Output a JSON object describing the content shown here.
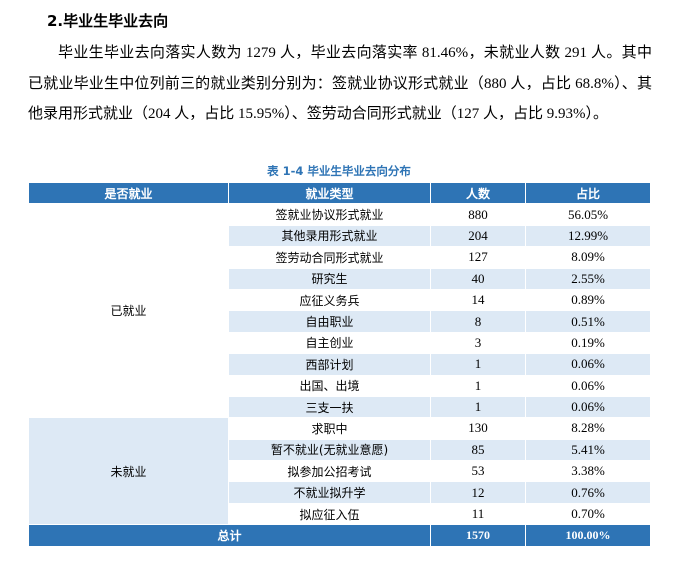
{
  "heading": "2.毕业生毕业去向",
  "paragraph": "毕业生毕业去向落实人数为 1279 人，毕业去向落实率 81.46%，未就业人数 291 人。其中已就业毕业生中位列前三的就业类别分别为：签就业协议形式就业（880 人，占比 68.8%）、其他录用形式就业（204 人，占比 15.95%）、签劳动合同形式就业（127 人，占比 9.93%）。",
  "table": {
    "caption": "表 1-4  毕业生毕业去向分布",
    "header": [
      "是否就业",
      "就业类型",
      "人数",
      "占比"
    ],
    "groups": [
      {
        "name": "已就业",
        "rows": [
          [
            "签就业协议形式就业",
            "880",
            "56.05%"
          ],
          [
            "其他录用形式就业",
            "204",
            "12.99%"
          ],
          [
            "签劳动合同形式就业",
            "127",
            "8.09%"
          ],
          [
            "研究生",
            "40",
            "2.55%"
          ],
          [
            "应征义务兵",
            "14",
            "0.89%"
          ],
          [
            "自由职业",
            "8",
            "0.51%"
          ],
          [
            "自主创业",
            "3",
            "0.19%"
          ],
          [
            "西部计划",
            "1",
            "0.06%"
          ],
          [
            "出国、出境",
            "1",
            "0.06%"
          ],
          [
            "三支一扶",
            "1",
            "0.06%"
          ]
        ]
      },
      {
        "name": "未就业",
        "rows": [
          [
            "求职中",
            "130",
            "8.28%"
          ],
          [
            "暂不就业(无就业意愿)",
            "85",
            "5.41%"
          ],
          [
            "拟参加公招考试",
            "53",
            "3.38%"
          ],
          [
            "不就业拟升学",
            "12",
            "0.76%"
          ],
          [
            "拟应征入伍",
            "11",
            "0.70%"
          ]
        ]
      }
    ],
    "total": [
      "总计",
      "1570",
      "100.00%"
    ]
  }
}
